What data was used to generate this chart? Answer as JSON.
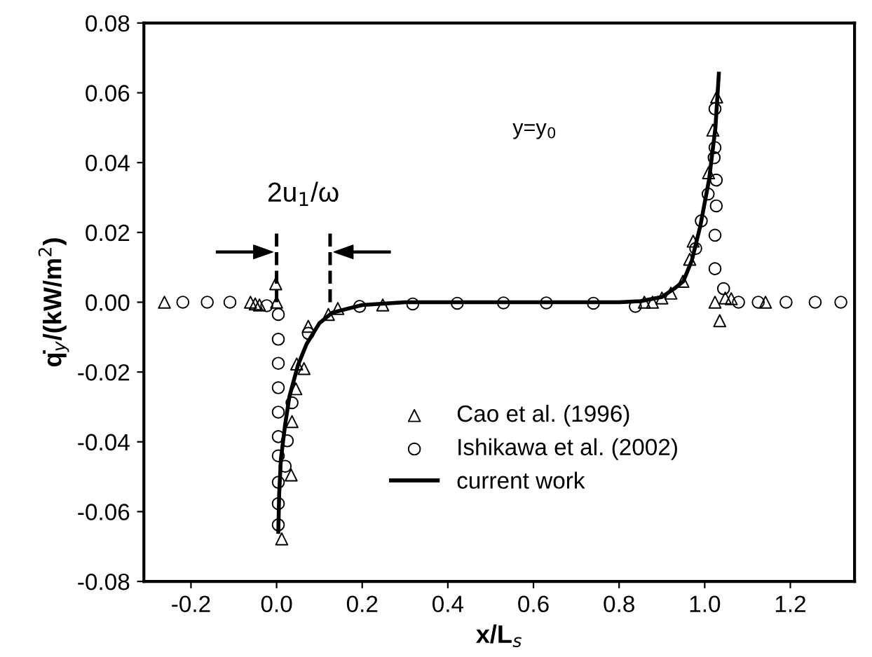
{
  "chart_data": {
    "type": "scatter",
    "xlabel": "x/L$_{s}$",
    "ylabel": "q̇$_{y}$/(kW/m$^{2}$)",
    "xlim": [
      -0.31,
      1.35
    ],
    "ylim": [
      -0.08,
      0.08
    ],
    "xticks": [
      {
        "value": -0.2,
        "label": "-0.2"
      },
      {
        "value": 0,
        "label": "0.0"
      },
      {
        "value": 0.2,
        "label": "0.2"
      },
      {
        "value": 0.4,
        "label": "0.4"
      },
      {
        "value": 0.6,
        "label": "0.6"
      },
      {
        "value": 0.8,
        "label": "0.8"
      },
      {
        "value": 1.0,
        "label": "1.0"
      },
      {
        "value": 1.2,
        "label": "1.2"
      }
    ],
    "yticks": [
      {
        "value": -0.08,
        "label": "-0.08"
      },
      {
        "value": -0.06,
        "label": "-0.06"
      },
      {
        "value": -0.04,
        "label": "-0.04"
      },
      {
        "value": -0.02,
        "label": "-0.02"
      },
      {
        "value": 0,
        "label": "0.00"
      },
      {
        "value": 0.02,
        "label": "0.02"
      },
      {
        "value": 0.04,
        "label": "0.04"
      },
      {
        "value": 0.06,
        "label": "0.06"
      },
      {
        "value": 0.08,
        "label": "0.08"
      }
    ],
    "annotations": [
      "y=y$_{0}$",
      "2u$_{1}$/ω"
    ],
    "ref_lines": [
      {
        "axis": "x",
        "value": 0,
        "line_style": "dashed",
        "color": "#000000"
      },
      {
        "axis": "x",
        "value": 0.125,
        "line_style": "dashed",
        "color": "#000000"
      }
    ],
    "legend": "bottom",
    "grid": false,
    "series": [
      {
        "name": "Cao et al. (1996)",
        "marker": "triangle",
        "color": "#000000",
        "x": [
          -0.262,
          -0.061,
          -0.05,
          -0.04,
          -0.002,
          0,
          0.121,
          0.143,
          0.248,
          0.074,
          0.064,
          0.047,
          0.045,
          0.036,
          0.034,
          0.012,
          1.028,
          1.019,
          1.009,
          0.973,
          0.965,
          0.949,
          0.921,
          0.9,
          0.878,
          0.859,
          1.024,
          1.048,
          1.062,
          1.142,
          1.035
        ],
        "values": [
          0,
          0,
          -0.0005,
          -0.0008,
          0.0053,
          0,
          -0.0035,
          -0.0018,
          -0.0008,
          -0.0069,
          -0.019,
          -0.0177,
          -0.0248,
          -0.0342,
          -0.0495,
          -0.0678,
          0.0588,
          0.0493,
          0.0371,
          0.0175,
          0.0123,
          0.006,
          0.0026,
          0.0012,
          0,
          0,
          0,
          0.0012,
          0.001,
          0,
          -0.0053
        ]
      },
      {
        "name": "Ishikawa et al. (2002)",
        "marker": "circle",
        "color": "#000000",
        "x": [
          -0.219,
          -0.162,
          -0.109,
          -0.023,
          0.004,
          0.004,
          0.004,
          0.004,
          0.004,
          0.004,
          0.004,
          0.004,
          0.004,
          0.004,
          0.036,
          0.025,
          0.02,
          0.074,
          0.194,
          0.318,
          0.422,
          0.53,
          0.63,
          0.74,
          0.838,
          0.979,
          0.992,
          1.024,
          1.024,
          1.022,
          1.027,
          1.008,
          1.027,
          1.024,
          1.024,
          1.044,
          1.079,
          1.125,
          1.19,
          1.258,
          1.318
        ],
        "values": [
          0,
          0,
          0,
          -0.001,
          -0.0035,
          -0.0106,
          -0.0175,
          -0.0245,
          -0.0315,
          -0.0385,
          -0.044,
          -0.0516,
          -0.0577,
          -0.0638,
          -0.0288,
          -0.0397,
          -0.047,
          -0.0089,
          -0.0012,
          -0.0005,
          -0.0003,
          -0.0002,
          -0.0002,
          -0.0003,
          -0.0012,
          0.0154,
          0.0233,
          0.0554,
          0.0443,
          0.0414,
          0.035,
          0.031,
          0.0276,
          0.0192,
          0.0096,
          0.0039,
          0,
          0,
          0,
          0,
          0
        ]
      },
      {
        "name": "current work",
        "type": "line",
        "marker": "none",
        "line_style": "solid",
        "color": "#000000",
        "x": [
          0.004,
          0.006,
          0.01,
          0.02,
          0.03,
          0.05,
          0.07,
          0.1,
          0.13,
          0.2,
          0.3,
          0.8,
          0.85,
          0.9,
          0.93,
          0.95,
          0.97,
          0.99,
          1.01,
          1.025,
          1.033
        ],
        "values": [
          -0.0658,
          -0.055,
          -0.045,
          -0.035,
          -0.027,
          -0.018,
          -0.012,
          -0.006,
          -0.003,
          -0.0008,
          0,
          0,
          0.0003,
          0.0015,
          0.004,
          0.006,
          0.012,
          0.022,
          0.035,
          0.05,
          0.0655
        ]
      }
    ]
  }
}
